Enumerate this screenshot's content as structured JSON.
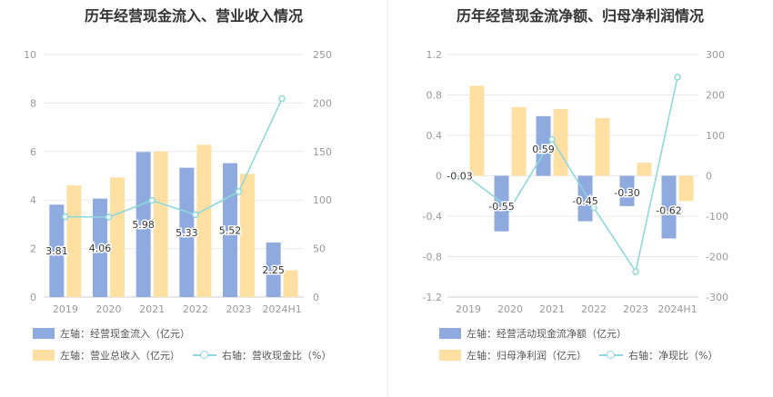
{
  "colors": {
    "blue": "#8eaadf",
    "yellow": "#ffdfa2",
    "line": "#8fd8dc",
    "axis_text": "#999999",
    "grid": "#e8e8ee"
  },
  "chart_data": [
    {
      "type": "bar",
      "title": "历年经营现金流入、营业收入情况",
      "categories": [
        "2019",
        "2020",
        "2021",
        "2022",
        "2023",
        "2024H1"
      ],
      "y_left": {
        "min": 0,
        "max": 10,
        "ticks": [
          0,
          2,
          4,
          6,
          8,
          10
        ]
      },
      "y_right": {
        "min": 0,
        "max": 250,
        "ticks": [
          0,
          50,
          100,
          150,
          200,
          250
        ]
      },
      "series": [
        {
          "name": "左轴：经营现金流入（亿元）",
          "type": "bar",
          "axis": "left",
          "color": "#8eaadf",
          "values": [
            3.81,
            4.06,
            5.98,
            5.33,
            5.52,
            2.25
          ],
          "labels": [
            "3.81",
            "4.06",
            "5.98",
            "5.33",
            "5.52",
            "2.25"
          ]
        },
        {
          "name": "左轴：营业总收入（亿元）",
          "type": "bar",
          "axis": "left",
          "color": "#ffdfa2",
          "values": [
            4.6,
            4.93,
            6.0,
            6.28,
            5.08,
            1.1
          ]
        },
        {
          "name": "右轴：营收现金比（%）",
          "type": "line",
          "axis": "right",
          "color": "#8fd8dc",
          "values": [
            82.8,
            82.4,
            99.6,
            84.9,
            108.7,
            204.5
          ]
        }
      ]
    },
    {
      "type": "bar",
      "title": "历年经营现金流净额、归母净利润情况",
      "categories": [
        "2019",
        "2020",
        "2021",
        "2022",
        "2023",
        "2024H1"
      ],
      "y_left": {
        "min": -1.2,
        "max": 1.2,
        "ticks": [
          -1.2,
          -0.8,
          -0.4,
          0,
          0.4,
          0.8,
          1.2
        ]
      },
      "y_right": {
        "min": -300,
        "max": 300,
        "ticks": [
          -300,
          -200,
          -100,
          0,
          100,
          200,
          300
        ]
      },
      "series": [
        {
          "name": "左轴：经营活动现金流净额（亿元）",
          "type": "bar",
          "axis": "left",
          "color": "#8eaadf",
          "values": [
            -0.03,
            -0.55,
            0.59,
            -0.45,
            -0.3,
            -0.62
          ],
          "labels": [
            "-0.03",
            "-0.55",
            "0.59",
            "-0.45",
            "-0.30",
            "-0.62"
          ]
        },
        {
          "name": "左轴：归母净利润（亿元）",
          "type": "bar",
          "axis": "left",
          "color": "#ffdfa2",
          "values": [
            0.89,
            0.68,
            0.66,
            0.57,
            0.13,
            -0.25
          ]
        },
        {
          "name": "右轴：净现比（%）",
          "type": "line",
          "axis": "right",
          "color": "#8fd8dc",
          "values": [
            -4,
            -81,
            90,
            -79,
            -237,
            244
          ]
        }
      ]
    }
  ]
}
